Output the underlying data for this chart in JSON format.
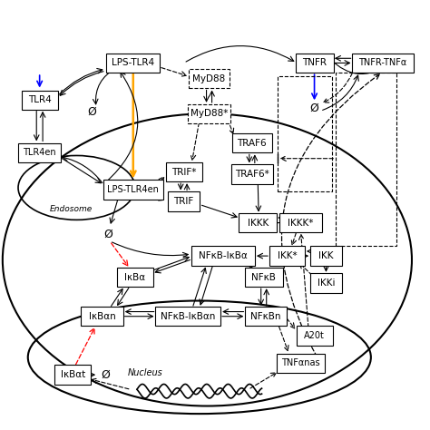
{
  "background": "#ffffff",
  "text_color": "#000000",
  "xlim": [
    -0.5,
    10.5
  ],
  "ylim": [
    -0.3,
    10.2
  ],
  "figsize": [
    4.74,
    4.74
  ],
  "dpi": 100
}
